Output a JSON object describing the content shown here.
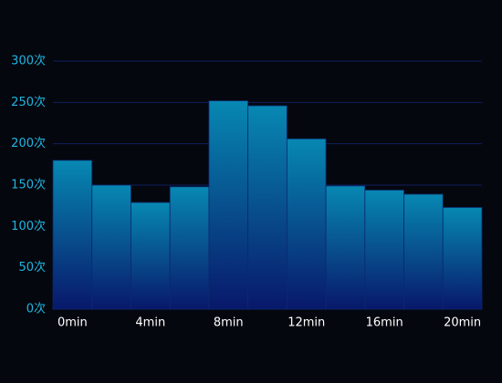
{
  "chart_data": {
    "type": "bar",
    "categories": [
      "0min",
      null,
      "4min",
      null,
      "8min",
      null,
      "12min",
      null,
      "16min",
      null,
      "20min"
    ],
    "values": [
      180,
      150,
      129,
      148,
      252,
      246,
      206,
      149,
      144,
      139,
      123
    ],
    "color": [
      "#0788b2",
      "#08186a"
    ],
    "ylim": [
      0,
      300
    ],
    "yticks": [
      {
        "value": 0,
        "label": "0次"
      },
      {
        "value": 50,
        "label": "50次"
      },
      {
        "value": 100,
        "label": "100次"
      },
      {
        "value": 150,
        "label": "150次"
      },
      {
        "value": 200,
        "label": "200次"
      },
      {
        "value": 250,
        "label": "250次"
      },
      {
        "value": 300,
        "label": "300次"
      }
    ],
    "grid": true
  }
}
